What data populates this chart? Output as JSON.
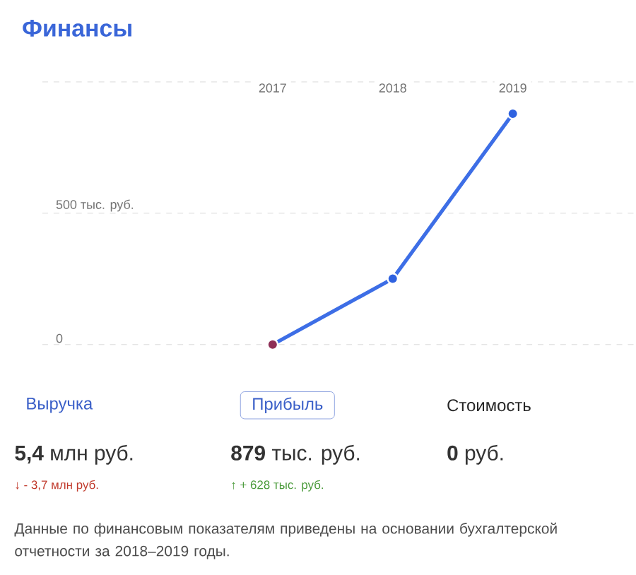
{
  "chart_data": {
    "type": "line",
    "title": "Финансы",
    "categories": [
      "2017",
      "2018",
      "2019"
    ],
    "series": [
      {
        "color": "#3d6ee6",
        "colors": [
          "#8e2f57",
          "#2f62e0",
          "#2f62e0"
        ],
        "values": [
          0,
          251,
          879
        ]
      }
    ],
    "ylim": [
      0,
      1000
    ],
    "yticks": [
      0,
      {
        "value": 500,
        "label": "500 тыс. руб."
      },
      {
        "value": 1000,
        "label": null
      }
    ],
    "grid": "y",
    "marker": "circle",
    "line_style": "solid",
    "annotations": [
      "Выручка",
      "Прибыль",
      "Стоимость",
      "**5,4** млн руб.",
      "**879** тыс. руб.",
      "**0** руб.",
      "↓ - 3,7 млн руб.",
      "↑ + 628 тыс. руб.",
      "Данные по финансовым показателям приведены на основании бухгалтерской отчетности за 2018–2019 годы."
    ]
  }
}
